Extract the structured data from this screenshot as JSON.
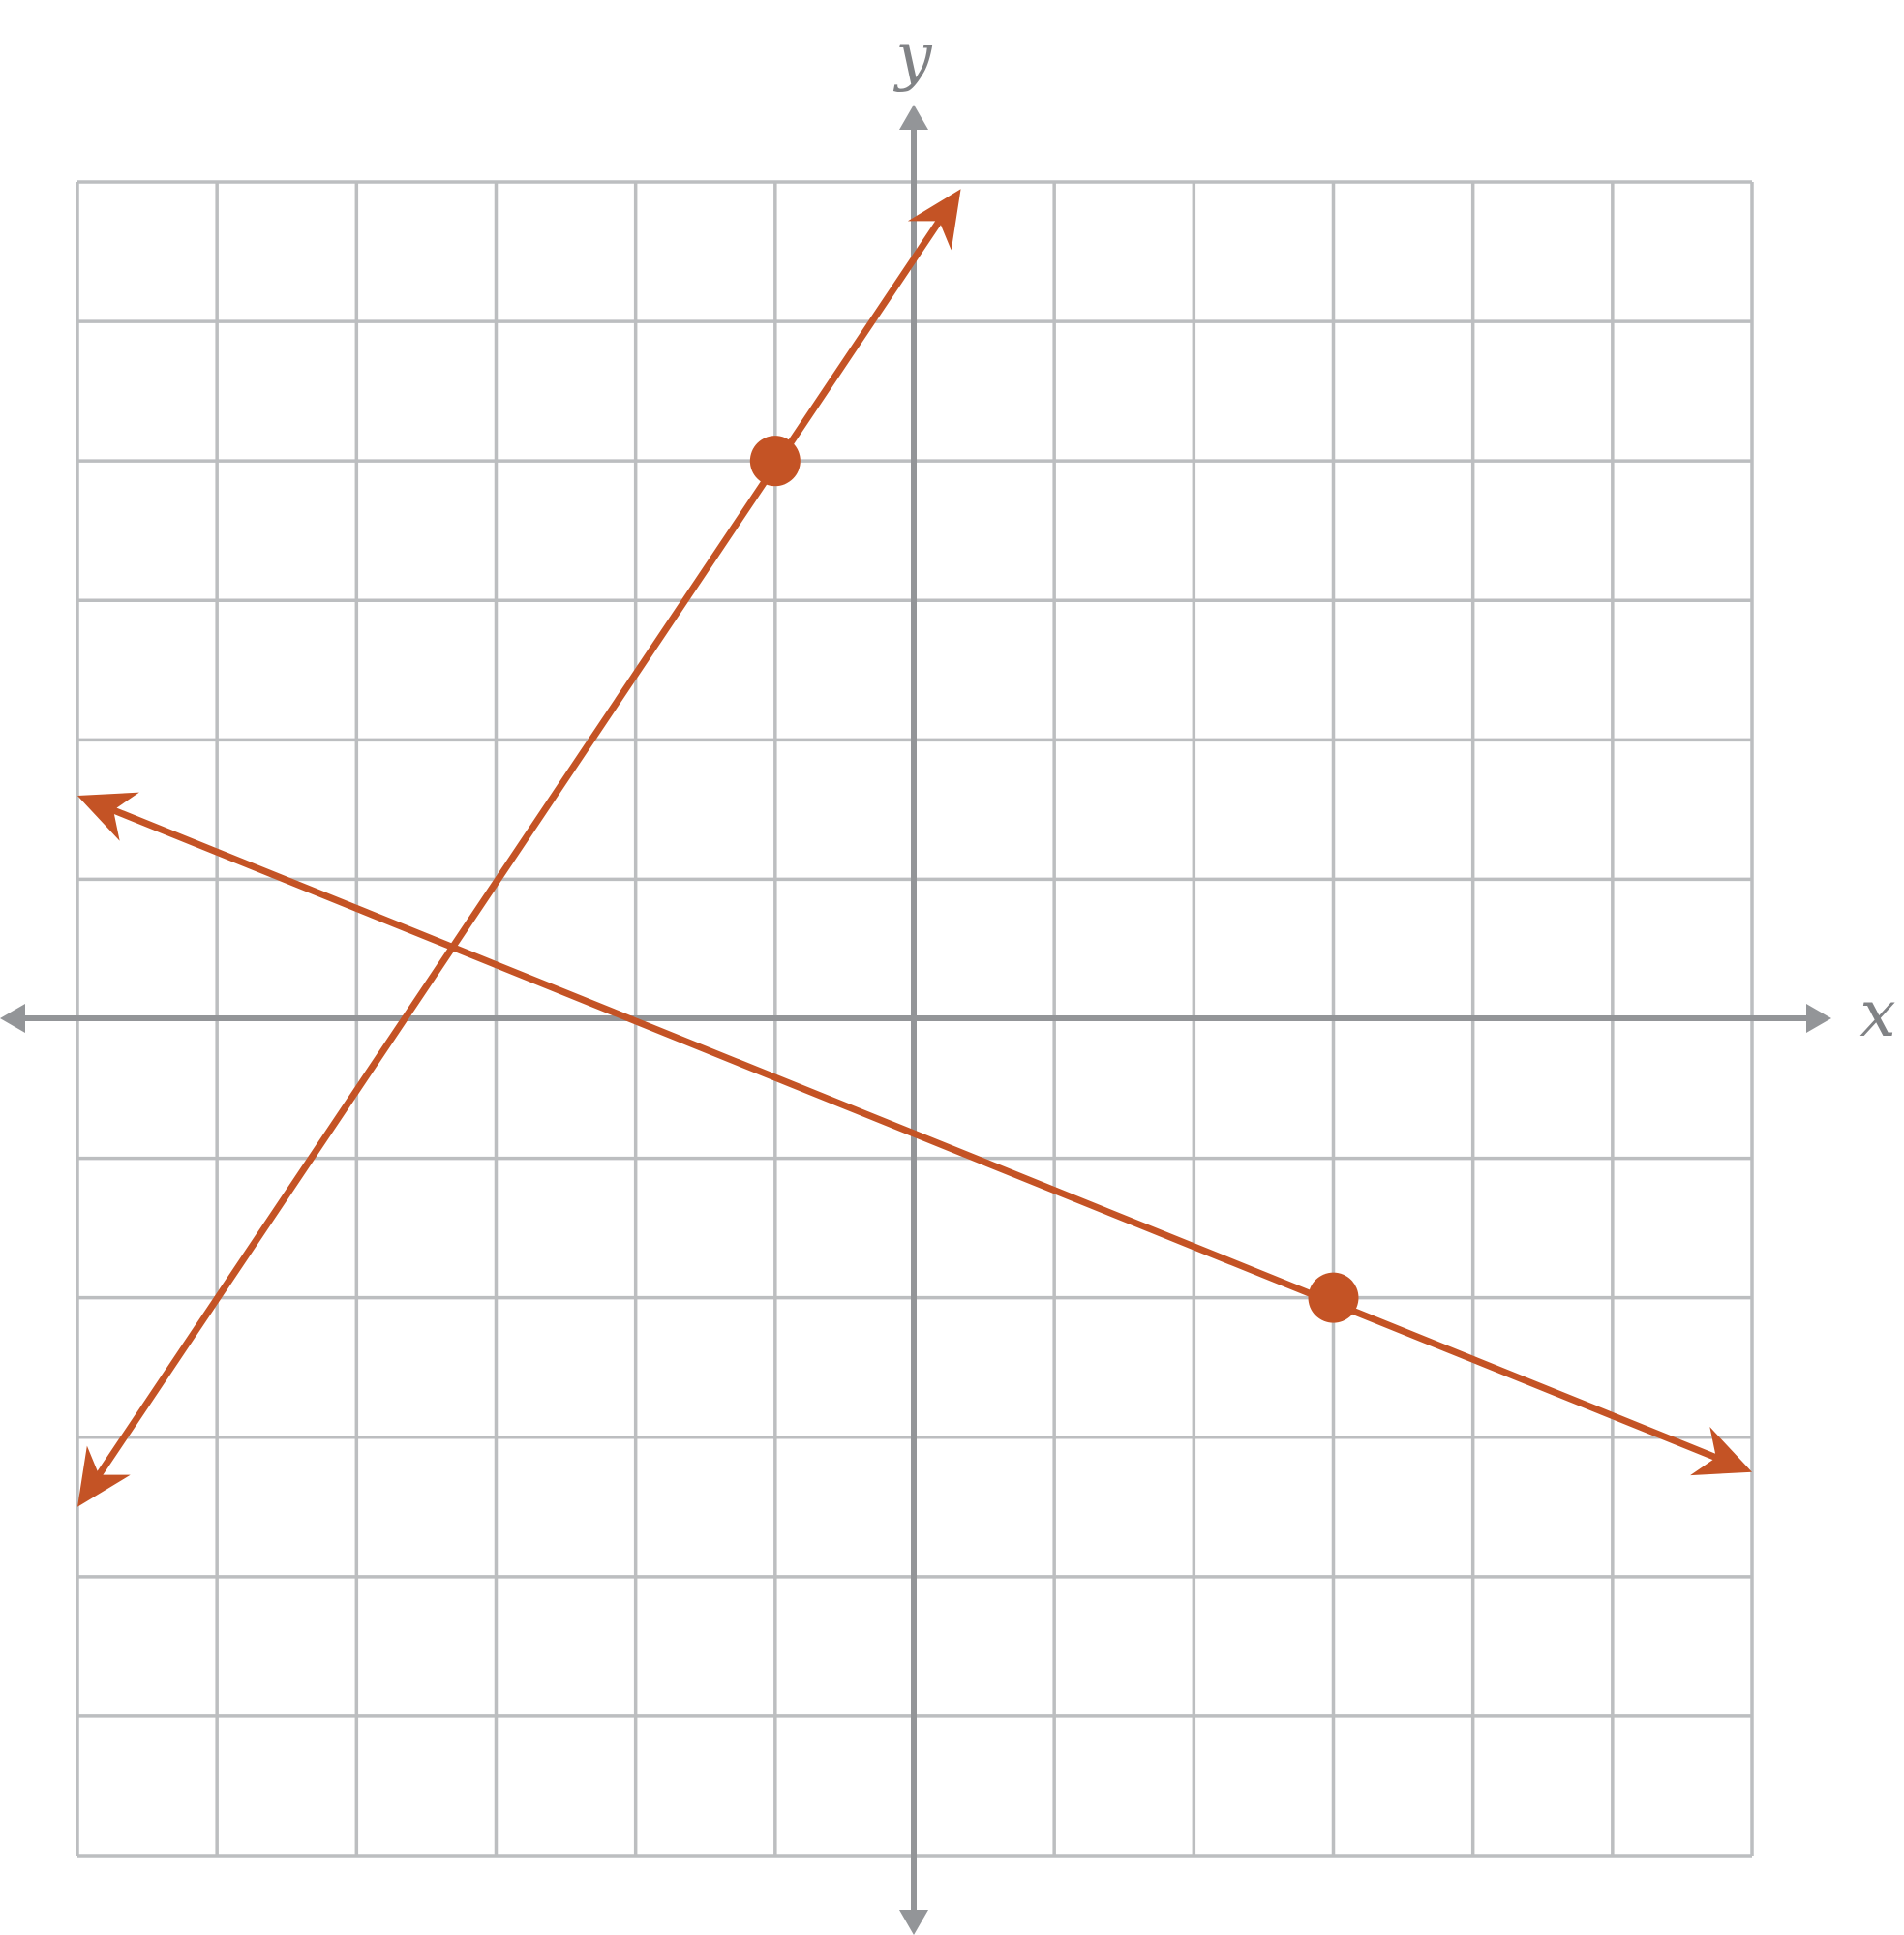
{
  "chart_data": {
    "type": "line",
    "title": "",
    "xlabel": "x",
    "ylabel": "y",
    "xlim": [
      -6,
      6
    ],
    "ylim": [
      -6,
      6
    ],
    "grid": true,
    "series": [
      {
        "x": [
          -6,
          0.33
        ],
        "y": [
          -3.5,
          5.95
        ],
        "points": [
          {
            "x": -1,
            "y": 4
          }
        ]
      },
      {
        "x": [
          -6,
          6
        ],
        "y": [
          1.6,
          -3.25
        ],
        "points": [
          {
            "x": 3,
            "y": -2
          }
        ]
      }
    ],
    "colors": {
      "line": "#c45325",
      "axis": "#939598",
      "grid": "#bcbec0",
      "label": "#808285"
    }
  }
}
